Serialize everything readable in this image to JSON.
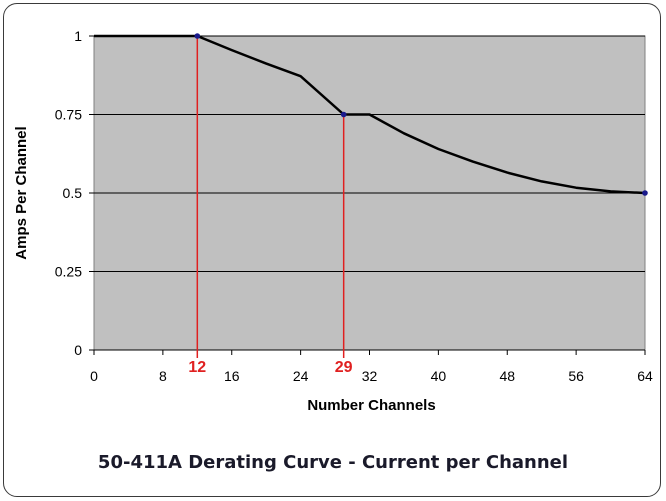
{
  "chart_data": {
    "type": "line",
    "title": "50-411A Derating Curve - Current per Channel",
    "xlabel": "Number Channels",
    "ylabel": "Amps Per Channel",
    "xlim": [
      0,
      64
    ],
    "ylim": [
      0,
      1
    ],
    "x_ticks": [
      "0",
      "8",
      "16",
      "24",
      "32",
      "40",
      "48",
      "56",
      "64"
    ],
    "y_ticks": [
      "0",
      "0.25",
      "0.5",
      "0.75",
      "1"
    ],
    "grid": "horizontal",
    "series": [
      {
        "x": [
          0,
          12,
          16,
          20,
          24,
          29,
          32,
          36,
          40,
          44,
          48,
          52,
          56,
          60,
          64
        ],
        "y": [
          1,
          1,
          0.955,
          0.912,
          0.872,
          0.75,
          0.75,
          0.69,
          0.64,
          0.6,
          0.565,
          0.537,
          0.517,
          0.505,
          0.5
        ]
      }
    ],
    "points": [
      {
        "x": 12,
        "y": 1
      },
      {
        "x": 29,
        "y": 0.75
      },
      {
        "x": 64,
        "y": 0.5
      }
    ],
    "markers": [
      {
        "x": 12,
        "label": "12"
      },
      {
        "x": 29,
        "label": "29"
      }
    ],
    "colors": {
      "plot_background": "#c0c0c0",
      "curve": "#000000",
      "marker_line": "#e02020",
      "point": "#1a1a8c"
    }
  }
}
